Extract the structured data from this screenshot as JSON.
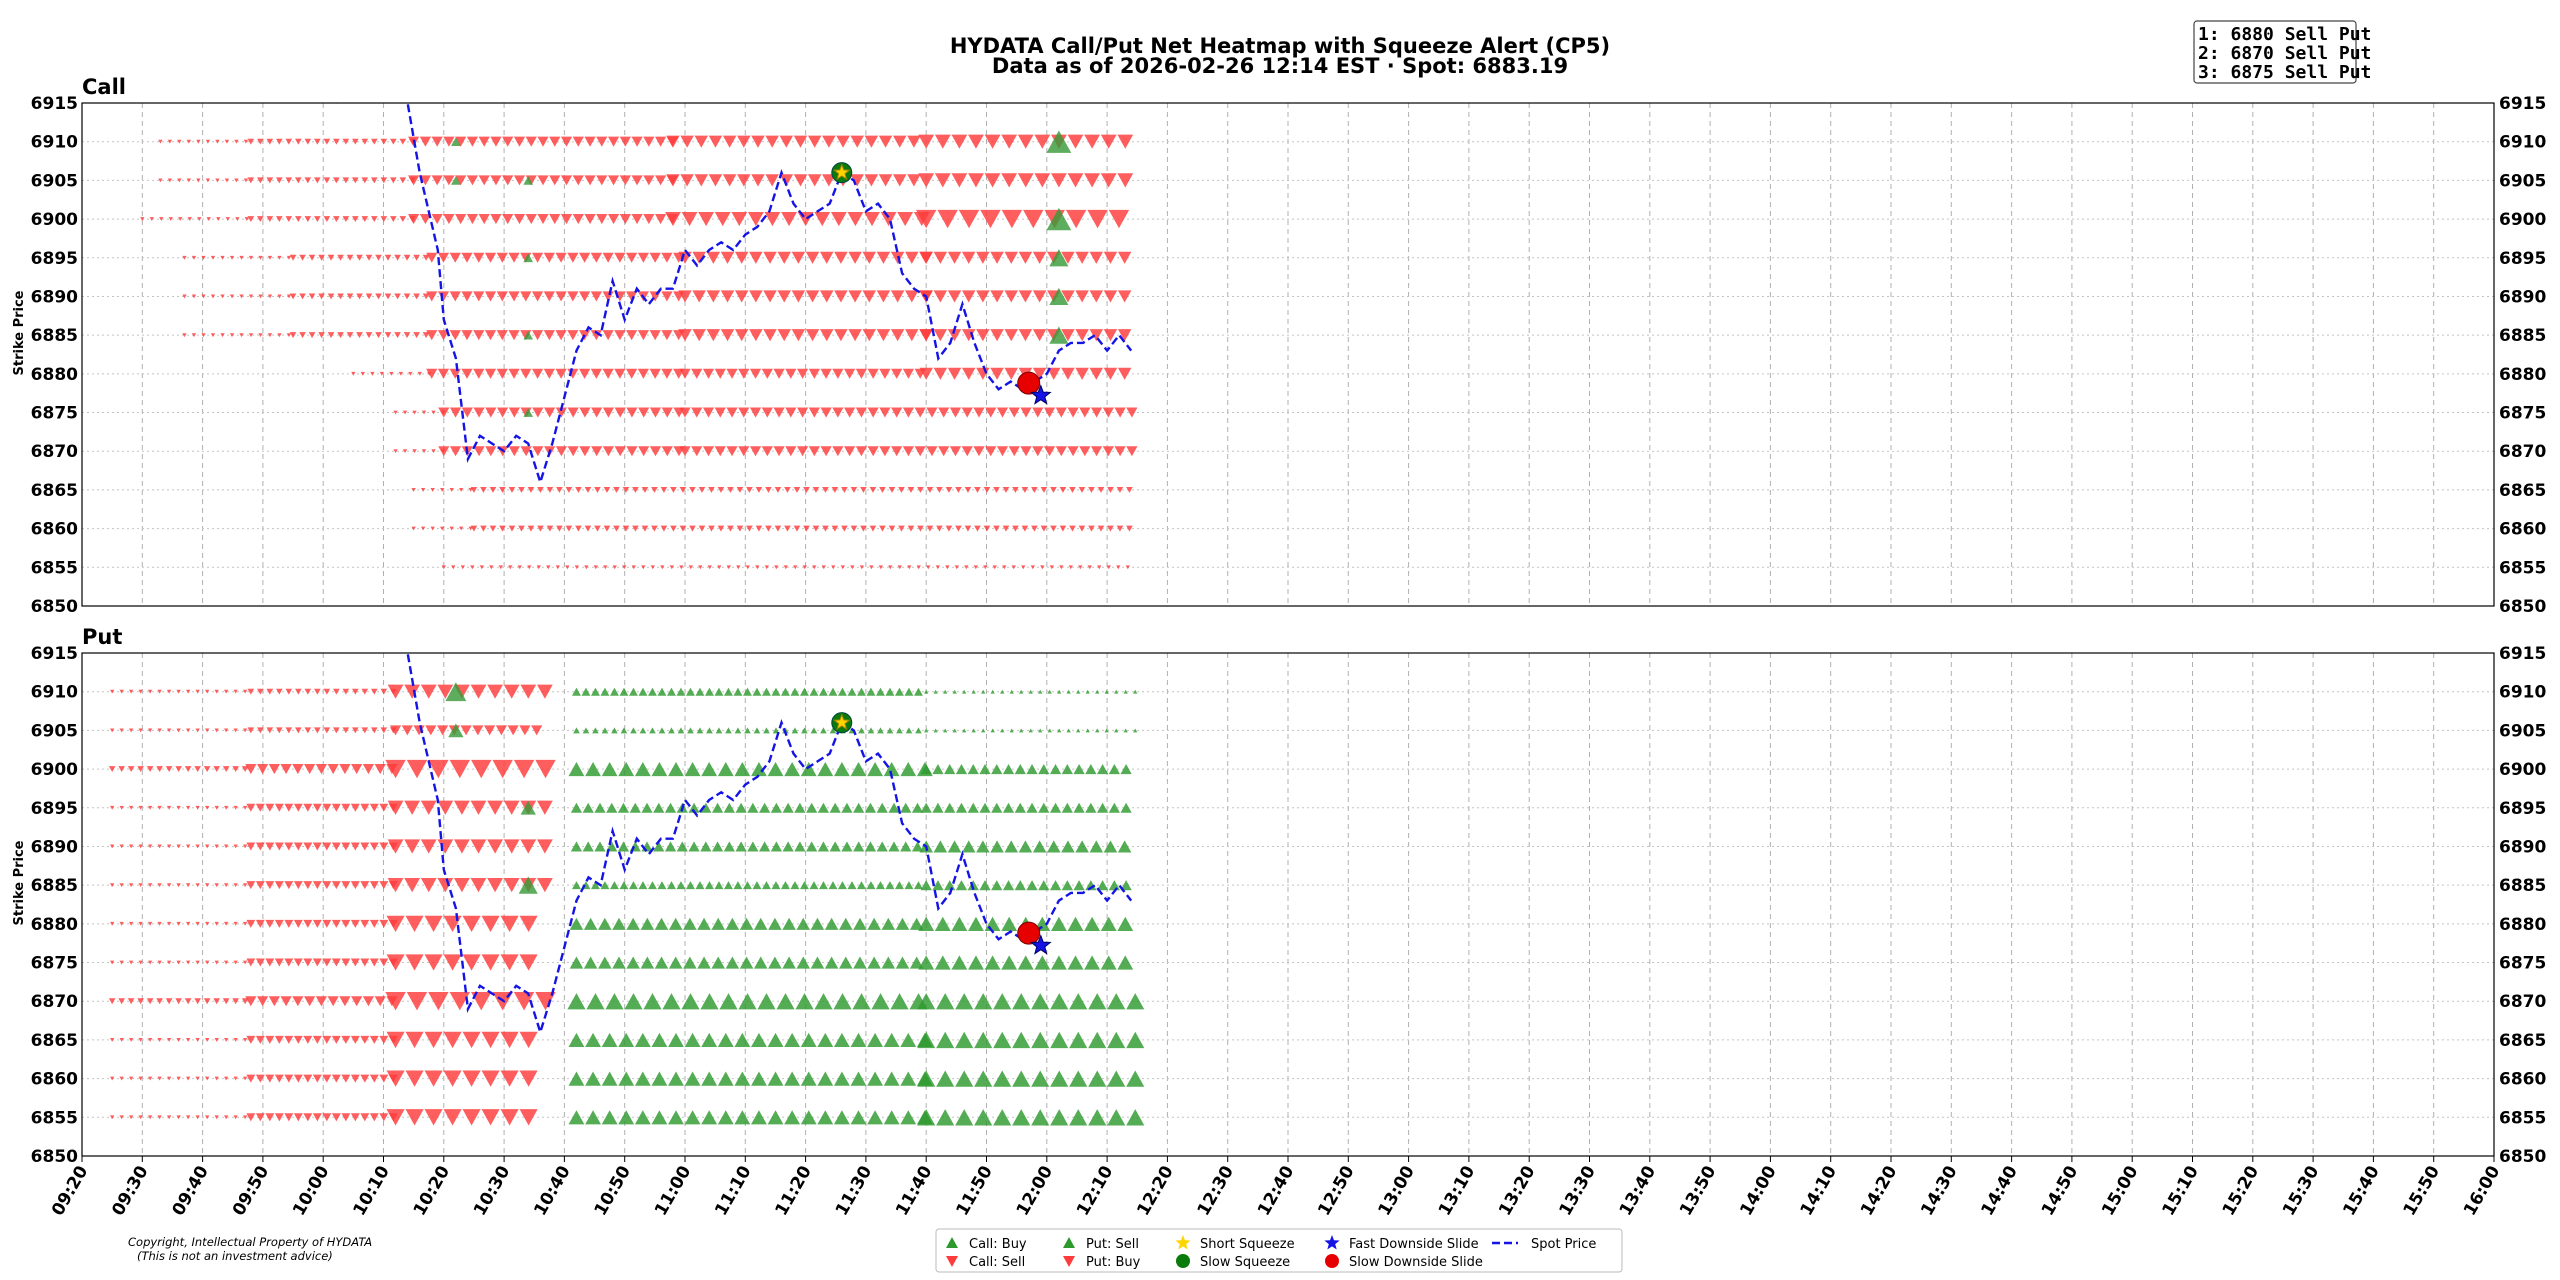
{
  "title": {
    "line1": "HYDATA Call/Put Net Heatmap with Squeeze Alert (CP5)",
    "line2": "Data as of 2026-02-26 12:14 EST · Spot: 6883.19"
  },
  "alerts": [
    "1: 6880 Sell Put",
    "2: 6870 Sell Put",
    "3: 6875 Sell Put"
  ],
  "copyright": [
    "Copyright, Intellectual Property of HYDATA",
    "(This is not an investment advice)"
  ],
  "colors": {
    "up": "#2e9a2e",
    "down": "#ff3b3b",
    "spot": "#1414e6",
    "short_squeeze": "#ffd500",
    "slow_squeeze": "#0a7a0a",
    "fast_slide": "#1414e6",
    "slow_slide": "#e60000"
  },
  "legend": [
    {
      "label": "Call: Buy",
      "icon": "triangle-up-icon",
      "color": "#2e9a2e"
    },
    {
      "label": "Call: Sell",
      "icon": "triangle-down-icon",
      "color": "#ff3b3b"
    },
    {
      "label": "Put: Sell",
      "icon": "triangle-up-icon",
      "color": "#2e9a2e"
    },
    {
      "label": "Put: Buy",
      "icon": "triangle-down-icon",
      "color": "#ff3b3b"
    },
    {
      "label": "Short Squeeze",
      "icon": "star-icon",
      "color": "#ffd500"
    },
    {
      "label": "Slow Squeeze",
      "icon": "circle-icon",
      "color": "#0a7a0a"
    },
    {
      "label": "Fast Downside Slide",
      "icon": "star-icon",
      "color": "#1414e6"
    },
    {
      "label": "Slow Downside Slide",
      "icon": "circle-icon",
      "color": "#e60000"
    },
    {
      "label": "Spot Price",
      "icon": "dashed-line-icon",
      "color": "#1414e6"
    }
  ],
  "chart_data": {
    "type": "scatter",
    "x_axis": {
      "label": "",
      "range": [
        "09:20",
        "16:00"
      ],
      "ticks": [
        "09:20",
        "09:30",
        "09:40",
        "09:50",
        "10:00",
        "10:10",
        "10:20",
        "10:30",
        "10:40",
        "10:50",
        "11:00",
        "11:10",
        "11:20",
        "11:30",
        "11:40",
        "11:50",
        "12:00",
        "12:10",
        "12:20",
        "12:30",
        "12:40",
        "12:50",
        "13:00",
        "13:10",
        "13:20",
        "13:30",
        "13:40",
        "13:50",
        "14:00",
        "14:10",
        "14:20",
        "14:30",
        "14:40",
        "14:50",
        "15:00",
        "15:10",
        "15:20",
        "15:30",
        "15:40",
        "15:50",
        "16:00"
      ]
    },
    "y_axis": {
      "label": "Strike Price",
      "range": [
        6850,
        6915
      ],
      "ticks": [
        6850,
        6855,
        6860,
        6865,
        6870,
        6875,
        6880,
        6885,
        6890,
        6895,
        6900,
        6905,
        6910,
        6915
      ]
    },
    "grid": true,
    "legend_position": "bottom-center",
    "strikes": [
      6855,
      6860,
      6865,
      6870,
      6875,
      6880,
      6885,
      6890,
      6895,
      6900,
      6905,
      6910
    ],
    "panels": [
      {
        "name": "Call",
        "rows": {
          "6910": [
            [
              "09:33",
              "09:48",
              "d",
              1
            ],
            [
              "09:48",
              "10:15",
              "d",
              2
            ],
            [
              "10:15",
              "10:58",
              "d",
              4
            ],
            [
              "10:58",
              "11:40",
              "d",
              5
            ],
            [
              "11:40",
              "12:15",
              "d",
              6
            ]
          ],
          "6905": [
            [
              "09:33",
              "09:48",
              "d",
              1
            ],
            [
              "09:48",
              "10:15",
              "d",
              2
            ],
            [
              "10:15",
              "10:58",
              "d",
              4
            ],
            [
              "10:58",
              "11:40",
              "d",
              5
            ],
            [
              "11:40",
              "12:15",
              "d",
              6
            ]
          ],
          "6900": [
            [
              "09:30",
              "09:48",
              "d",
              1
            ],
            [
              "09:48",
              "10:15",
              "d",
              2
            ],
            [
              "10:15",
              "10:58",
              "d",
              4
            ],
            [
              "10:58",
              "11:40",
              "d",
              6
            ],
            [
              "11:40",
              "12:15",
              "d",
              8
            ]
          ],
          "6895": [
            [
              "09:37",
              "09:55",
              "d",
              1
            ],
            [
              "09:55",
              "10:18",
              "d",
              2
            ],
            [
              "10:18",
              "11:00",
              "d",
              4
            ],
            [
              "11:00",
              "11:40",
              "d",
              5
            ],
            [
              "11:40",
              "12:15",
              "d",
              5
            ]
          ],
          "6890": [
            [
              "09:37",
              "09:55",
              "d",
              1
            ],
            [
              "09:55",
              "10:18",
              "d",
              2
            ],
            [
              "10:18",
              "11:00",
              "d",
              4
            ],
            [
              "11:00",
              "11:40",
              "d",
              5
            ],
            [
              "11:40",
              "12:15",
              "d",
              5
            ]
          ],
          "6885": [
            [
              "09:37",
              "09:55",
              "d",
              1
            ],
            [
              "09:55",
              "10:18",
              "d",
              2
            ],
            [
              "10:18",
              "11:00",
              "d",
              4
            ],
            [
              "11:00",
              "11:40",
              "d",
              5
            ],
            [
              "11:40",
              "12:15",
              "d",
              5
            ]
          ],
          "6880": [
            [
              "10:05",
              "10:18",
              "d",
              1
            ],
            [
              "10:18",
              "11:00",
              "d",
              4
            ],
            [
              "11:00",
              "11:40",
              "d",
              4
            ],
            [
              "11:40",
              "12:15",
              "d",
              5
            ]
          ],
          "6875": [
            [
              "10:12",
              "10:20",
              "d",
              1
            ],
            [
              "10:20",
              "11:00",
              "d",
              4
            ],
            [
              "11:00",
              "12:15",
              "d",
              4
            ]
          ],
          "6870": [
            [
              "10:12",
              "10:20",
              "d",
              1
            ],
            [
              "10:20",
              "11:00",
              "d",
              4
            ],
            [
              "11:00",
              "12:15",
              "d",
              4
            ]
          ],
          "6865": [
            [
              "10:15",
              "10:25",
              "d",
              1
            ],
            [
              "10:25",
              "12:15",
              "d",
              2
            ]
          ],
          "6860": [
            [
              "10:15",
              "10:25",
              "d",
              1
            ],
            [
              "10:25",
              "12:15",
              "d",
              2
            ]
          ],
          "6855": [
            [
              "10:20",
              "12:15",
              "d",
              1
            ]
          ]
        },
        "extras": [
          [
            "10:22",
            6910,
            "u",
            4
          ],
          [
            "10:22",
            6905,
            "u",
            4
          ],
          [
            "10:34",
            6905,
            "u",
            4
          ],
          [
            "10:34",
            6895,
            "u",
            4
          ],
          [
            "10:34",
            6885,
            "u",
            4
          ],
          [
            "10:34",
            6875,
            "u",
            4
          ],
          [
            "12:02",
            6910,
            "u",
            12
          ],
          [
            "12:02",
            6900,
            "u",
            12
          ],
          [
            "12:02",
            6895,
            "u",
            9
          ],
          [
            "12:02",
            6890,
            "u",
            9
          ],
          [
            "12:02",
            6885,
            "u",
            9
          ]
        ]
      },
      {
        "name": "Put",
        "rows": {
          "6910": [
            [
              "09:25",
              "09:48",
              "d",
              1
            ],
            [
              "09:48",
              "10:12",
              "d",
              2
            ],
            [
              "10:12",
              "10:37",
              "d",
              6
            ],
            [
              "10:42",
              "11:40",
              "u",
              3
            ],
            [
              "11:40",
              "12:15",
              "u",
              1
            ]
          ],
          "6905": [
            [
              "09:25",
              "09:48",
              "d",
              1
            ],
            [
              "09:48",
              "10:12",
              "d",
              2
            ],
            [
              "10:12",
              "10:37",
              "d",
              4
            ],
            [
              "10:42",
              "11:40",
              "u",
              2
            ],
            [
              "11:40",
              "12:15",
              "u",
              1
            ]
          ],
          "6900": [
            [
              "09:25",
              "09:48",
              "d",
              2
            ],
            [
              "09:48",
              "10:12",
              "d",
              4
            ],
            [
              "10:12",
              "10:37",
              "d",
              8
            ],
            [
              "10:42",
              "11:40",
              "u",
              6
            ],
            [
              "11:40",
              "12:15",
              "u",
              4
            ]
          ],
          "6895": [
            [
              "09:25",
              "09:48",
              "d",
              1
            ],
            [
              "09:48",
              "10:12",
              "d",
              3
            ],
            [
              "10:12",
              "10:37",
              "d",
              6
            ],
            [
              "10:42",
              "11:40",
              "u",
              4
            ],
            [
              "11:40",
              "12:15",
              "u",
              4
            ]
          ],
          "6890": [
            [
              "09:25",
              "09:48",
              "d",
              1
            ],
            [
              "09:48",
              "10:12",
              "d",
              3
            ],
            [
              "10:12",
              "10:37",
              "d",
              6
            ],
            [
              "10:42",
              "11:40",
              "u",
              4
            ],
            [
              "11:40",
              "12:15",
              "u",
              5
            ]
          ],
          "6885": [
            [
              "09:25",
              "09:48",
              "d",
              1
            ],
            [
              "09:48",
              "10:12",
              "d",
              3
            ],
            [
              "10:12",
              "10:37",
              "d",
              6
            ],
            [
              "10:42",
              "11:40",
              "u",
              3
            ],
            [
              "11:40",
              "12:15",
              "u",
              4
            ]
          ],
          "6880": [
            [
              "09:25",
              "09:48",
              "d",
              1
            ],
            [
              "09:48",
              "10:12",
              "d",
              3
            ],
            [
              "10:12",
              "10:37",
              "d",
              7
            ],
            [
              "10:42",
              "11:40",
              "u",
              5
            ],
            [
              "11:40",
              "12:15",
              "u",
              6
            ]
          ],
          "6875": [
            [
              "09:25",
              "09:48",
              "d",
              1
            ],
            [
              "09:48",
              "10:12",
              "d",
              3
            ],
            [
              "10:12",
              "10:37",
              "d",
              7
            ],
            [
              "10:42",
              "11:40",
              "u",
              5
            ],
            [
              "11:40",
              "12:15",
              "u",
              6
            ]
          ],
          "6870": [
            [
              "09:25",
              "09:48",
              "d",
              2
            ],
            [
              "09:48",
              "10:12",
              "d",
              4
            ],
            [
              "10:12",
              "10:37",
              "d",
              8
            ],
            [
              "10:42",
              "11:40",
              "u",
              7
            ],
            [
              "11:40",
              "12:15",
              "u",
              7
            ]
          ],
          "6865": [
            [
              "09:25",
              "09:48",
              "d",
              1
            ],
            [
              "09:48",
              "10:12",
              "d",
              3
            ],
            [
              "10:12",
              "10:37",
              "d",
              7
            ],
            [
              "10:42",
              "11:40",
              "u",
              6
            ],
            [
              "11:40",
              "12:15",
              "u",
              7
            ]
          ],
          "6860": [
            [
              "09:25",
              "09:48",
              "d",
              1
            ],
            [
              "09:48",
              "10:12",
              "d",
              3
            ],
            [
              "10:12",
              "10:37",
              "d",
              7
            ],
            [
              "10:42",
              "11:40",
              "u",
              6
            ],
            [
              "11:40",
              "12:15",
              "u",
              7
            ]
          ],
          "6855": [
            [
              "09:25",
              "09:48",
              "d",
              1
            ],
            [
              "09:48",
              "10:12",
              "d",
              3
            ],
            [
              "10:12",
              "10:37",
              "d",
              7
            ],
            [
              "10:42",
              "11:40",
              "u",
              6
            ],
            [
              "11:40",
              "12:15",
              "u",
              7
            ]
          ]
        },
        "extras": [
          [
            "10:22",
            6910,
            "u",
            10
          ],
          [
            "10:22",
            6905,
            "u",
            7
          ],
          [
            "10:34",
            6895,
            "u",
            7
          ],
          [
            "10:34",
            6885,
            "u",
            9
          ]
        ]
      }
    ],
    "spot_series": {
      "name": "Spot Price",
      "x": [
        "10:02",
        "10:04",
        "10:12",
        "10:14",
        "10:16",
        "10:19",
        "10:20",
        "10:22",
        "10:24",
        "10:26",
        "10:28",
        "10:30",
        "10:32",
        "10:34",
        "10:36",
        "10:38",
        "10:40",
        "10:42",
        "10:44",
        "10:46",
        "10:48",
        "10:50",
        "10:52",
        "10:54",
        "10:56",
        "10:58",
        "11:00",
        "11:02",
        "11:04",
        "11:06",
        "11:08",
        "11:10",
        "11:12",
        "11:14",
        "11:16",
        "11:18",
        "11:20",
        "11:22",
        "11:24",
        "11:26",
        "11:28",
        "11:30",
        "11:32",
        "11:34",
        "11:36",
        "11:38",
        "11:40",
        "11:42",
        "11:44",
        "11:46",
        "11:48",
        "11:50",
        "11:52",
        "11:54",
        "11:56",
        "11:58",
        "12:00",
        "12:02",
        "12:04",
        "12:06",
        "12:08",
        "12:10",
        "12:12",
        "12:14"
      ],
      "y": [
        6915,
        6917,
        6918,
        6915,
        6906,
        6896,
        6887,
        6882,
        6869,
        6872,
        6871,
        6870,
        6872,
        6871,
        6866,
        6871,
        6877,
        6883,
        6886,
        6885,
        6892,
        6887,
        6891,
        6889,
        6891,
        6891,
        6896,
        6894,
        6896,
        6897,
        6896,
        6898,
        6899,
        6901,
        6906,
        6902,
        6900,
        6901,
        6902,
        6906,
        6905,
        6901,
        6902,
        6900,
        6893,
        6891,
        6890,
        6882,
        6884,
        6889,
        6884,
        6880,
        6878,
        6879,
        6878,
        6879,
        6880,
        6883,
        6884,
        6884,
        6885,
        6883,
        6885,
        6883
      ]
    },
    "markers": [
      {
        "type": "Short Squeeze",
        "x": "11:26",
        "y": 6906
      },
      {
        "type": "Slow Squeeze",
        "x": "11:26",
        "y": 6906
      },
      {
        "type": "Slow Downside Slide",
        "x": "11:57",
        "y": 6878.8
      },
      {
        "type": "Fast Downside Slide",
        "x": "11:59",
        "y": 6877.2
      }
    ]
  }
}
